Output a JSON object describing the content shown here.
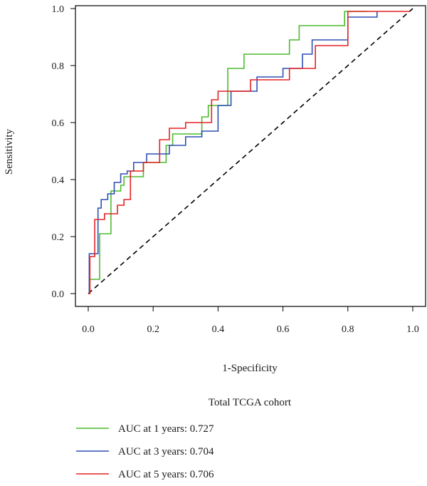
{
  "chart_data": {
    "type": "line",
    "title": "",
    "xlabel": "1-Specificity",
    "ylabel": "Sensitivity",
    "xlim": [
      0,
      1
    ],
    "ylim": [
      0,
      1
    ],
    "x_ticks": [
      "0.0",
      "0.2",
      "0.4",
      "0.6",
      "0.8",
      "1.0"
    ],
    "y_ticks": [
      "0.0",
      "0.2",
      "0.4",
      "0.6",
      "0.8",
      "1.0"
    ],
    "grid": false,
    "reference_line": {
      "x": [
        0,
        1
      ],
      "y": [
        0,
        1
      ],
      "style": "dashed",
      "color": "#000000"
    },
    "legend": {
      "title": "Total TCGA cohort",
      "placement": "below-plot"
    },
    "series": [
      {
        "name": "AUC at 1 years: 0.727",
        "color": "#4cbb2e",
        "x": [
          0,
          0.005,
          0.005,
          0.035,
          0.035,
          0.07,
          0.07,
          0.1,
          0.1,
          0.11,
          0.11,
          0.17,
          0.17,
          0.24,
          0.24,
          0.26,
          0.26,
          0.35,
          0.35,
          0.37,
          0.37,
          0.43,
          0.43,
          0.48,
          0.48,
          0.62,
          0.62,
          0.65,
          0.65,
          0.79,
          0.79,
          0.86
        ],
        "y": [
          0,
          0,
          0.05,
          0.05,
          0.21,
          0.21,
          0.36,
          0.36,
          0.38,
          0.38,
          0.41,
          0.41,
          0.46,
          0.46,
          0.52,
          0.52,
          0.56,
          0.56,
          0.62,
          0.62,
          0.66,
          0.66,
          0.79,
          0.79,
          0.84,
          0.84,
          0.89,
          0.89,
          0.94,
          0.94,
          0.99,
          0.99
        ]
      },
      {
        "name": "AUC at 3 years: 0.704",
        "color": "#2e4fb6",
        "x": [
          0,
          0.003,
          0.003,
          0.03,
          0.03,
          0.04,
          0.04,
          0.06,
          0.06,
          0.08,
          0.08,
          0.1,
          0.1,
          0.12,
          0.12,
          0.14,
          0.14,
          0.18,
          0.18,
          0.25,
          0.25,
          0.3,
          0.3,
          0.35,
          0.35,
          0.4,
          0.4,
          0.44,
          0.44,
          0.52,
          0.52,
          0.6,
          0.6,
          0.66,
          0.66,
          0.69,
          0.69,
          0.8,
          0.8,
          0.89,
          0.89
        ],
        "y": [
          0,
          0,
          0.14,
          0.14,
          0.3,
          0.3,
          0.33,
          0.33,
          0.35,
          0.35,
          0.39,
          0.39,
          0.42,
          0.42,
          0.43,
          0.43,
          0.46,
          0.46,
          0.49,
          0.49,
          0.52,
          0.52,
          0.55,
          0.55,
          0.57,
          0.57,
          0.66,
          0.66,
          0.71,
          0.71,
          0.76,
          0.76,
          0.79,
          0.79,
          0.84,
          0.84,
          0.89,
          0.89,
          0.97,
          0.97,
          0.99
        ]
      },
      {
        "name": "AUC at 5 years: 0.706",
        "color": "#e62222",
        "x": [
          0,
          0.005,
          0.005,
          0.02,
          0.02,
          0.05,
          0.05,
          0.09,
          0.09,
          0.11,
          0.11,
          0.13,
          0.13,
          0.17,
          0.17,
          0.22,
          0.22,
          0.25,
          0.25,
          0.3,
          0.3,
          0.38,
          0.38,
          0.4,
          0.4,
          0.5,
          0.5,
          0.62,
          0.62,
          0.7,
          0.7,
          0.8,
          0.8,
          0.99
        ],
        "y": [
          0,
          0,
          0.13,
          0.13,
          0.26,
          0.26,
          0.28,
          0.28,
          0.31,
          0.31,
          0.33,
          0.33,
          0.43,
          0.43,
          0.46,
          0.46,
          0.54,
          0.54,
          0.58,
          0.58,
          0.6,
          0.6,
          0.68,
          0.68,
          0.71,
          0.71,
          0.75,
          0.75,
          0.79,
          0.79,
          0.87,
          0.87,
          0.99,
          0.99
        ]
      }
    ]
  }
}
